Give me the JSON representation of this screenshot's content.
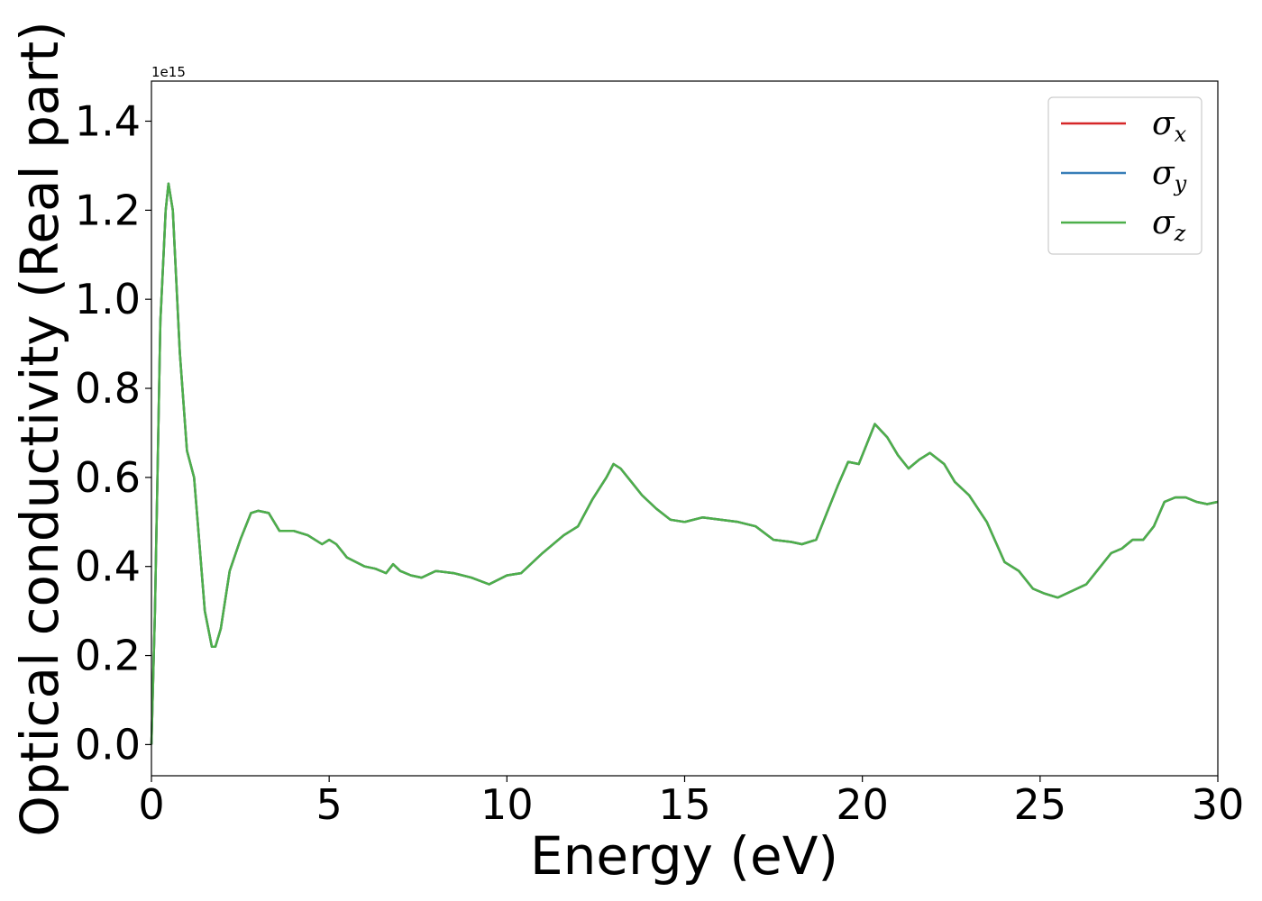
{
  "chart_data": {
    "type": "line",
    "xlabel": "Energy (eV)",
    "ylabel": "Optical conductivity (Real part)",
    "y_offset_label": "1e15",
    "xlim": [
      0,
      30
    ],
    "ylim": [
      -0.07,
      1.49
    ],
    "xticks": [
      0,
      5,
      10,
      15,
      20,
      25,
      30
    ],
    "xtick_labels": [
      "0",
      "5",
      "10",
      "15",
      "20",
      "25",
      "30"
    ],
    "yticks": [
      0.0,
      0.2,
      0.4,
      0.6,
      0.8,
      1.0,
      1.2,
      1.4
    ],
    "ytick_labels": [
      "0.0",
      "0.2",
      "0.4",
      "0.6",
      "0.8",
      "1.0",
      "1.2",
      "1.4"
    ],
    "grid": false,
    "legend_position": "upper right",
    "x": [
      0,
      0.1,
      0.25,
      0.4,
      0.48,
      0.6,
      0.8,
      1.0,
      1.2,
      1.3,
      1.5,
      1.7,
      1.8,
      1.95,
      2.2,
      2.5,
      2.8,
      3.0,
      3.3,
      3.6,
      4.0,
      4.4,
      4.8,
      5.0,
      5.2,
      5.5,
      6.0,
      6.3,
      6.6,
      6.8,
      7.0,
      7.3,
      7.6,
      8.0,
      8.5,
      9.0,
      9.5,
      10.0,
      10.4,
      11.0,
      11.6,
      12.0,
      12.4,
      12.8,
      13.0,
      13.2,
      13.5,
      13.8,
      14.2,
      14.6,
      15.0,
      15.5,
      16.0,
      16.5,
      17.0,
      17.5,
      18.0,
      18.3,
      18.7,
      19.0,
      19.3,
      19.6,
      19.9,
      20.1,
      20.35,
      20.7,
      21.0,
      21.3,
      21.6,
      21.9,
      22.3,
      22.6,
      23.0,
      23.5,
      24.0,
      24.4,
      24.8,
      25.1,
      25.5,
      25.9,
      26.3,
      26.6,
      27.0,
      27.3,
      27.6,
      27.9,
      28.2,
      28.5,
      28.8,
      29.1,
      29.4,
      29.7,
      30.0
    ],
    "series": [
      {
        "name": "σx",
        "color": "#d62728",
        "values": [
          0.0,
          0.3,
          0.95,
          1.2,
          1.26,
          1.2,
          0.88,
          0.66,
          0.6,
          0.5,
          0.3,
          0.22,
          0.22,
          0.26,
          0.39,
          0.46,
          0.52,
          0.525,
          0.52,
          0.48,
          0.48,
          0.47,
          0.45,
          0.46,
          0.45,
          0.42,
          0.4,
          0.395,
          0.385,
          0.405,
          0.39,
          0.38,
          0.375,
          0.39,
          0.385,
          0.375,
          0.36,
          0.38,
          0.385,
          0.43,
          0.47,
          0.49,
          0.55,
          0.6,
          0.63,
          0.62,
          0.59,
          0.56,
          0.53,
          0.505,
          0.5,
          0.51,
          0.505,
          0.5,
          0.49,
          0.46,
          0.455,
          0.45,
          0.46,
          0.52,
          0.58,
          0.635,
          0.63,
          0.67,
          0.72,
          0.69,
          0.65,
          0.62,
          0.64,
          0.655,
          0.63,
          0.59,
          0.56,
          0.5,
          0.41,
          0.39,
          0.35,
          0.34,
          0.33,
          0.345,
          0.36,
          0.39,
          0.43,
          0.44,
          0.46,
          0.46,
          0.49,
          0.545,
          0.555,
          0.555,
          0.545,
          0.54,
          0.545
        ]
      },
      {
        "name": "σy",
        "color": "#377eb8",
        "values": [
          0.0,
          0.3,
          0.95,
          1.2,
          1.26,
          1.2,
          0.88,
          0.66,
          0.6,
          0.5,
          0.3,
          0.22,
          0.22,
          0.26,
          0.39,
          0.46,
          0.52,
          0.525,
          0.52,
          0.48,
          0.48,
          0.47,
          0.45,
          0.46,
          0.45,
          0.42,
          0.4,
          0.395,
          0.385,
          0.405,
          0.39,
          0.38,
          0.375,
          0.39,
          0.385,
          0.375,
          0.36,
          0.38,
          0.385,
          0.43,
          0.47,
          0.49,
          0.55,
          0.6,
          0.63,
          0.62,
          0.59,
          0.56,
          0.53,
          0.505,
          0.5,
          0.51,
          0.505,
          0.5,
          0.49,
          0.46,
          0.455,
          0.45,
          0.46,
          0.52,
          0.58,
          0.635,
          0.63,
          0.67,
          0.72,
          0.69,
          0.65,
          0.62,
          0.64,
          0.655,
          0.63,
          0.59,
          0.56,
          0.5,
          0.41,
          0.39,
          0.35,
          0.34,
          0.33,
          0.345,
          0.36,
          0.39,
          0.43,
          0.44,
          0.46,
          0.46,
          0.49,
          0.545,
          0.555,
          0.555,
          0.545,
          0.54,
          0.545
        ]
      },
      {
        "name": "σz",
        "color": "#4daf4a",
        "values": [
          0.0,
          0.3,
          0.95,
          1.2,
          1.26,
          1.2,
          0.88,
          0.66,
          0.6,
          0.5,
          0.3,
          0.22,
          0.22,
          0.26,
          0.39,
          0.46,
          0.52,
          0.525,
          0.52,
          0.48,
          0.48,
          0.47,
          0.45,
          0.46,
          0.45,
          0.42,
          0.4,
          0.395,
          0.385,
          0.405,
          0.39,
          0.38,
          0.375,
          0.39,
          0.385,
          0.375,
          0.36,
          0.38,
          0.385,
          0.43,
          0.47,
          0.49,
          0.55,
          0.6,
          0.63,
          0.62,
          0.59,
          0.56,
          0.53,
          0.505,
          0.5,
          0.51,
          0.505,
          0.5,
          0.49,
          0.46,
          0.455,
          0.45,
          0.46,
          0.52,
          0.58,
          0.635,
          0.63,
          0.67,
          0.72,
          0.69,
          0.65,
          0.62,
          0.64,
          0.655,
          0.63,
          0.59,
          0.56,
          0.5,
          0.41,
          0.39,
          0.35,
          0.34,
          0.33,
          0.345,
          0.36,
          0.39,
          0.43,
          0.44,
          0.46,
          0.46,
          0.49,
          0.545,
          0.555,
          0.555,
          0.545,
          0.54,
          0.545
        ]
      }
    ],
    "legend": [
      {
        "symbol": "σ",
        "subscript": "x",
        "color": "#d62728"
      },
      {
        "symbol": "σ",
        "subscript": "y",
        "color": "#377eb8"
      },
      {
        "symbol": "σ",
        "subscript": "z",
        "color": "#4daf4a"
      }
    ]
  }
}
